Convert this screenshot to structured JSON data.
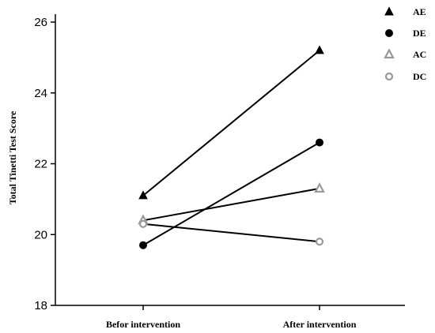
{
  "chart_data": {
    "type": "line",
    "categories": [
      "Befor intervention",
      "After intervention"
    ],
    "ylabel": "Total Tinetti Test Score",
    "ylim": [
      18,
      26
    ],
    "yticks": [
      18,
      20,
      22,
      24,
      26
    ],
    "grid": false,
    "legend_position": "top-right",
    "series": [
      {
        "name": "AE",
        "values": [
          21.1,
          25.2
        ],
        "marker": "triangle-filled",
        "color": "#000000"
      },
      {
        "name": "DE",
        "values": [
          19.7,
          22.6
        ],
        "marker": "circle-filled",
        "color": "#000000"
      },
      {
        "name": "AC",
        "values": [
          20.4,
          21.3
        ],
        "marker": "triangle-open",
        "color": "#999999"
      },
      {
        "name": "DC",
        "values": [
          20.3,
          19.8
        ],
        "marker": "circle-open",
        "color": "#999999"
      }
    ]
  }
}
